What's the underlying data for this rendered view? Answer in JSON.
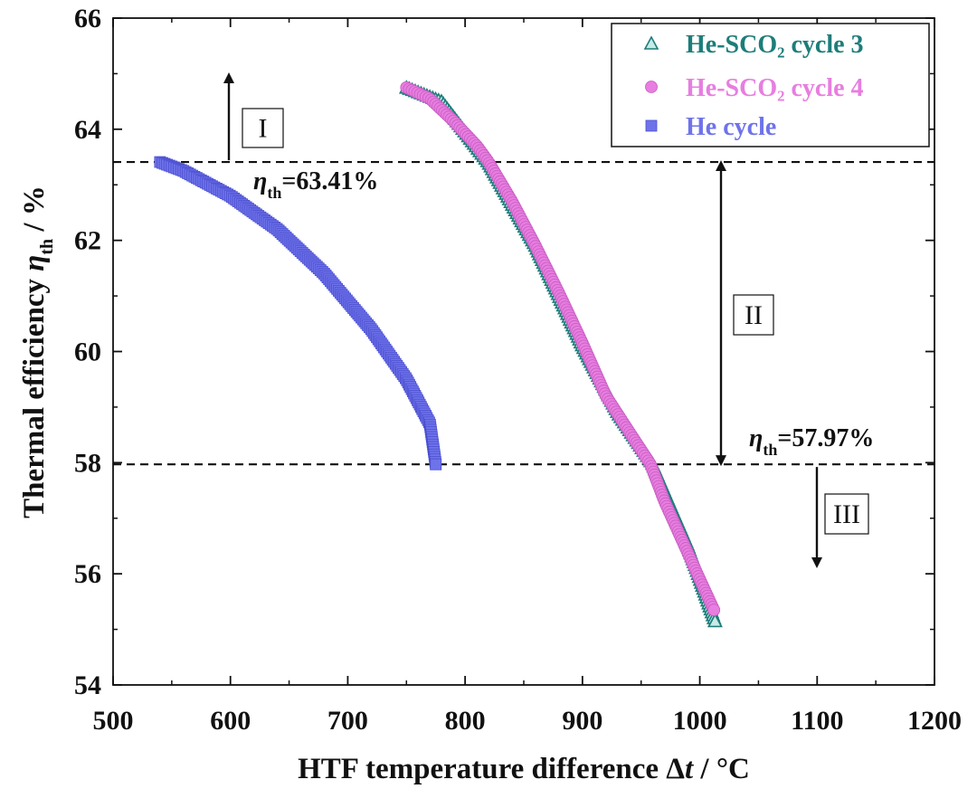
{
  "chart_data": {
    "type": "scatter",
    "title": "",
    "xlabel": "HTF temperature difference Δt / °C",
    "xlabel_parts": {
      "prefix": "HTF temperature difference ",
      "delta": "Δ",
      "var": "t",
      "unit": " / °C"
    },
    "ylabel": "Thermal efficiency η th / %",
    "ylabel_parts": {
      "prefix": "Thermal efficiency ",
      "var": "η",
      "sub": "th",
      "unit": " / %"
    },
    "xlim": [
      500,
      1200
    ],
    "ylim": [
      54,
      66
    ],
    "x_ticks": [
      "500",
      "600",
      "700",
      "800",
      "900",
      "1000",
      "1100",
      "1200"
    ],
    "y_ticks": [
      "54",
      "56",
      "58",
      "60",
      "62",
      "64",
      "66"
    ],
    "grid": false,
    "legend": {
      "position": "top-right",
      "entries": [
        {
          "id": "cycle3",
          "label": "He-SCO₂ cycle 3",
          "color": "#1d7d7a",
          "marker": "triangle"
        },
        {
          "id": "cycle4",
          "label": "He-SCO₂ cycle 4",
          "color": "#e77ee0",
          "marker": "circle"
        },
        {
          "id": "he",
          "label": "He cycle",
          "color": "#6f73ea",
          "marker": "square"
        }
      ]
    },
    "series": [
      {
        "name": "He-SCO₂ cycle 3",
        "color": "#1d7d7a",
        "marker": "triangle",
        "points": [
          [
            750,
            64.75
          ],
          [
            780,
            64.5
          ],
          [
            820,
            63.4
          ],
          [
            860,
            61.9
          ],
          [
            900,
            60.1
          ],
          [
            930,
            58.9
          ],
          [
            960,
            57.97
          ],
          [
            990,
            56.5
          ],
          [
            1013,
            55.15
          ]
        ]
      },
      {
        "name": "He-SCO₂ cycle 4",
        "color": "#e77ee0",
        "marker": "circle",
        "points": [
          [
            750,
            64.75
          ],
          [
            770,
            64.55
          ],
          [
            790,
            64.15
          ],
          [
            810,
            63.7
          ],
          [
            820,
            63.41
          ],
          [
            840,
            62.7
          ],
          [
            860,
            61.9
          ],
          [
            880,
            61.05
          ],
          [
            900,
            60.15
          ],
          [
            920,
            59.2
          ],
          [
            940,
            58.55
          ],
          [
            958,
            57.97
          ],
          [
            970,
            57.3
          ],
          [
            985,
            56.6
          ],
          [
            1000,
            55.9
          ],
          [
            1012,
            55.35
          ]
        ]
      },
      {
        "name": "He cycle",
        "color": "#6f73ea",
        "marker": "square",
        "points": [
          [
            540,
            63.41
          ],
          [
            560,
            63.25
          ],
          [
            600,
            62.8
          ],
          [
            640,
            62.2
          ],
          [
            680,
            61.4
          ],
          [
            720,
            60.4
          ],
          [
            750,
            59.5
          ],
          [
            770,
            58.7
          ],
          [
            775,
            57.97
          ]
        ]
      }
    ],
    "reference_lines": [
      {
        "y": 63.41,
        "label_var": "η",
        "label_sub": "th",
        "label_val": "=63.41%"
      },
      {
        "y": 57.97,
        "label_var": "η",
        "label_sub": "th",
        "label_val": "=57.97%"
      }
    ],
    "regions": [
      {
        "label": "I",
        "direction": "up"
      },
      {
        "label": "II",
        "direction": "both"
      },
      {
        "label": "III",
        "direction": "down"
      }
    ]
  }
}
